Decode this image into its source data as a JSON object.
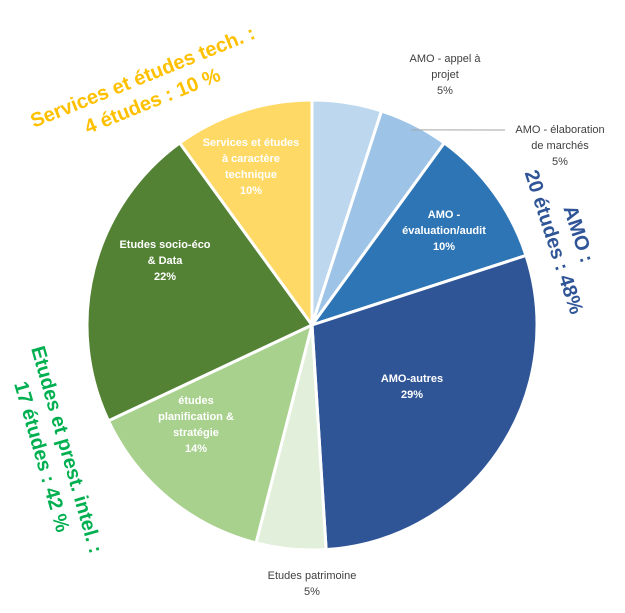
{
  "chart_data": {
    "type": "pie",
    "slices": [
      {
        "label": "AMO - appel à projet",
        "lines": [
          "AMO - appel à",
          "projet"
        ],
        "pct_text": "5%",
        "value": 5,
        "color": "#bdd7ee",
        "label_pos": "outside"
      },
      {
        "label": "AMO - élaboration de marchés",
        "lines": [
          "AMO - élaboration",
          "de marchés"
        ],
        "pct_text": "5%",
        "value": 5,
        "color": "#9dc3e6",
        "label_pos": "outside"
      },
      {
        "label": "AMO - évaluation/audit",
        "lines": [
          "AMO -",
          "évaluation/audit"
        ],
        "pct_text": "10%",
        "value": 10,
        "color": "#2e75b6",
        "label_pos": "inside",
        "text_color": "#ffffff"
      },
      {
        "label": "AMO-autres",
        "lines": [
          "AMO-autres"
        ],
        "pct_text": "29%",
        "value": 29,
        "color": "#2f5597",
        "label_pos": "inside",
        "text_color": "#ffffff"
      },
      {
        "label": "Etudes patrimoine",
        "lines": [
          "Etudes patrimoine"
        ],
        "pct_text": "5%",
        "value": 5,
        "color": "#e2efda",
        "label_pos": "outside"
      },
      {
        "label": "études planification & stratégie",
        "lines": [
          "études",
          "planification &",
          "stratégie"
        ],
        "pct_text": "14%",
        "value": 14,
        "color": "#a9d18e",
        "label_pos": "inside",
        "text_color": "#ffffff"
      },
      {
        "label": "Etudes socio-éco & Data",
        "lines": [
          "Etudes socio-éco",
          "& Data"
        ],
        "pct_text": "22%",
        "value": 22,
        "color": "#548235",
        "label_pos": "inside",
        "text_color": "#ffffff"
      },
      {
        "label": "Services et études à caractère technique",
        "lines": [
          "Services et études",
          "à caractère",
          "technique"
        ],
        "pct_text": "10%",
        "value": 10,
        "color": "#ffd966",
        "label_pos": "inside",
        "text_color": "#ffffff"
      }
    ],
    "group_annotations": [
      {
        "name": "services",
        "lines": [
          "Services et études tech. :",
          "4 études : 10 %"
        ],
        "color": "#ffc000"
      },
      {
        "name": "amo",
        "lines": [
          "AMO :",
          "20 études : 48%"
        ],
        "color": "#2f5597"
      },
      {
        "name": "etudes",
        "lines": [
          "Etudes et prest. intel. :",
          "17 études : 42 %"
        ],
        "color": "#00b050"
      }
    ]
  }
}
